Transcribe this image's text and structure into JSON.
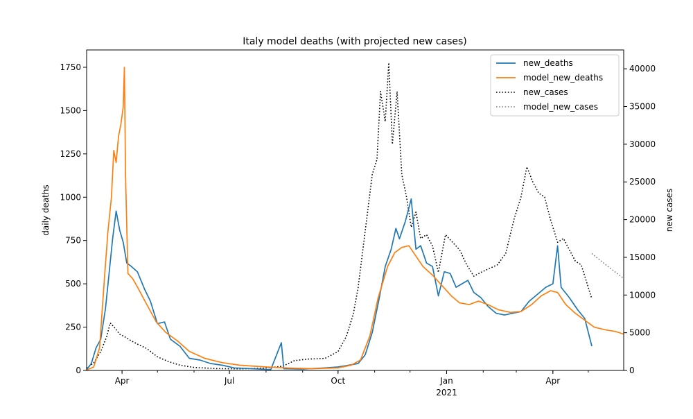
{
  "chart_data": {
    "type": "line",
    "title": "Italy model deaths (with projected new cases)",
    "ylabel_left": "daily deaths",
    "ylabel_right": "new cases",
    "x_ticks": [
      {
        "date": "2020-04-01",
        "label": "Apr"
      },
      {
        "date": "2020-07-01",
        "label": "Jul"
      },
      {
        "date": "2020-10-01",
        "label": "Oct"
      },
      {
        "date": "2021-01-01",
        "label": "Jan",
        "sublabel": "2021"
      },
      {
        "date": "2021-04-01",
        "label": "Apr"
      }
    ],
    "xlim": [
      "2020-03-02",
      "2021-05-31"
    ],
    "ylim_left": [
      0,
      1850
    ],
    "ylim_right": [
      0,
      42500
    ],
    "yticks_left": [
      0,
      250,
      500,
      750,
      1000,
      1250,
      1500,
      1750
    ],
    "yticks_right": [
      0,
      5000,
      10000,
      15000,
      20000,
      25000,
      30000,
      35000,
      40000
    ],
    "legend_position": "top-right",
    "series": [
      {
        "name": "new_deaths",
        "axis": "left",
        "color": "#1f77b4",
        "style": "solid",
        "points": [
          [
            "2020-03-02",
            5
          ],
          [
            "2020-03-06",
            40
          ],
          [
            "2020-03-10",
            130
          ],
          [
            "2020-03-14",
            180
          ],
          [
            "2020-03-18",
            360
          ],
          [
            "2020-03-21",
            560
          ],
          [
            "2020-03-24",
            760
          ],
          [
            "2020-03-27",
            920
          ],
          [
            "2020-03-30",
            810
          ],
          [
            "2020-04-02",
            740
          ],
          [
            "2020-04-05",
            620
          ],
          [
            "2020-04-09",
            600
          ],
          [
            "2020-04-14",
            570
          ],
          [
            "2020-04-20",
            470
          ],
          [
            "2020-04-25",
            400
          ],
          [
            "2020-05-01",
            270
          ],
          [
            "2020-05-07",
            280
          ],
          [
            "2020-05-12",
            180
          ],
          [
            "2020-05-20",
            140
          ],
          [
            "2020-05-28",
            70
          ],
          [
            "2020-06-06",
            60
          ],
          [
            "2020-06-15",
            40
          ],
          [
            "2020-06-25",
            30
          ],
          [
            "2020-07-05",
            15
          ],
          [
            "2020-07-20",
            10
          ],
          [
            "2020-08-05",
            5
          ],
          [
            "2020-08-14",
            160
          ],
          [
            "2020-08-16",
            10
          ],
          [
            "2020-09-01",
            8
          ],
          [
            "2020-09-20",
            15
          ],
          [
            "2020-10-01",
            20
          ],
          [
            "2020-10-10",
            30
          ],
          [
            "2020-10-18",
            40
          ],
          [
            "2020-10-24",
            90
          ],
          [
            "2020-10-30",
            220
          ],
          [
            "2020-11-05",
            420
          ],
          [
            "2020-11-10",
            600
          ],
          [
            "2020-11-15",
            700
          ],
          [
            "2020-11-19",
            820
          ],
          [
            "2020-11-22",
            760
          ],
          [
            "2020-11-27",
            860
          ],
          [
            "2020-12-02",
            990
          ],
          [
            "2020-12-06",
            700
          ],
          [
            "2020-12-10",
            720
          ],
          [
            "2020-12-15",
            620
          ],
          [
            "2020-12-20",
            600
          ],
          [
            "2020-12-25",
            430
          ],
          [
            "2020-12-30",
            570
          ],
          [
            "2021-01-04",
            560
          ],
          [
            "2021-01-09",
            480
          ],
          [
            "2021-01-14",
            500
          ],
          [
            "2021-01-19",
            520
          ],
          [
            "2021-01-24",
            450
          ],
          [
            "2021-01-30",
            420
          ],
          [
            "2021-02-05",
            370
          ],
          [
            "2021-02-12",
            330
          ],
          [
            "2021-02-19",
            320
          ],
          [
            "2021-02-26",
            330
          ],
          [
            "2021-03-05",
            340
          ],
          [
            "2021-03-12",
            400
          ],
          [
            "2021-03-19",
            440
          ],
          [
            "2021-03-26",
            480
          ],
          [
            "2021-04-01",
            500
          ],
          [
            "2021-04-05",
            720
          ],
          [
            "2021-04-08",
            480
          ],
          [
            "2021-04-15",
            420
          ],
          [
            "2021-04-22",
            350
          ],
          [
            "2021-04-28",
            300
          ],
          [
            "2021-05-04",
            140
          ]
        ]
      },
      {
        "name": "model_new_deaths",
        "axis": "left",
        "color": "#ff7f0e",
        "style": "solid",
        "points": [
          [
            "2020-03-02",
            2
          ],
          [
            "2020-03-08",
            20
          ],
          [
            "2020-03-13",
            130
          ],
          [
            "2020-03-17",
            520
          ],
          [
            "2020-03-20",
            800
          ],
          [
            "2020-03-23",
            1000
          ],
          [
            "2020-03-25",
            1270
          ],
          [
            "2020-03-27",
            1200
          ],
          [
            "2020-03-29",
            1350
          ],
          [
            "2020-03-31",
            1420
          ],
          [
            "2020-04-02",
            1520
          ],
          [
            "2020-04-03",
            1750
          ],
          [
            "2020-04-04",
            1120
          ],
          [
            "2020-04-06",
            560
          ],
          [
            "2020-04-10",
            530
          ],
          [
            "2020-04-15",
            470
          ],
          [
            "2020-04-22",
            380
          ],
          [
            "2020-04-30",
            280
          ],
          [
            "2020-05-08",
            220
          ],
          [
            "2020-05-18",
            170
          ],
          [
            "2020-05-28",
            110
          ],
          [
            "2020-06-10",
            70
          ],
          [
            "2020-06-25",
            45
          ],
          [
            "2020-07-10",
            30
          ],
          [
            "2020-08-01",
            20
          ],
          [
            "2020-08-20",
            14
          ],
          [
            "2020-09-10",
            10
          ],
          [
            "2020-10-01",
            15
          ],
          [
            "2020-10-12",
            30
          ],
          [
            "2020-10-20",
            60
          ],
          [
            "2020-10-28",
            200
          ],
          [
            "2020-11-04",
            420
          ],
          [
            "2020-11-12",
            600
          ],
          [
            "2020-11-18",
            680
          ],
          [
            "2020-11-24",
            710
          ],
          [
            "2020-11-30",
            720
          ],
          [
            "2020-12-06",
            660
          ],
          [
            "2020-12-12",
            600
          ],
          [
            "2020-12-20",
            550
          ],
          [
            "2020-12-28",
            490
          ],
          [
            "2021-01-05",
            430
          ],
          [
            "2021-01-12",
            390
          ],
          [
            "2021-01-20",
            380
          ],
          [
            "2021-01-28",
            400
          ],
          [
            "2021-02-05",
            380
          ],
          [
            "2021-02-14",
            350
          ],
          [
            "2021-02-24",
            335
          ],
          [
            "2021-03-05",
            340
          ],
          [
            "2021-03-14",
            380
          ],
          [
            "2021-03-22",
            430
          ],
          [
            "2021-03-30",
            460
          ],
          [
            "2021-04-05",
            450
          ],
          [
            "2021-04-12",
            380
          ],
          [
            "2021-04-20",
            330
          ],
          [
            "2021-04-28",
            290
          ],
          [
            "2021-05-06",
            250
          ],
          [
            "2021-05-15",
            235
          ],
          [
            "2021-05-24",
            225
          ],
          [
            "2021-05-31",
            210
          ]
        ]
      },
      {
        "name": "new_cases",
        "axis": "right",
        "color": "#000000",
        "style": "dotted",
        "points": [
          [
            "2020-03-02",
            300
          ],
          [
            "2020-03-08",
            1000
          ],
          [
            "2020-03-14",
            2500
          ],
          [
            "2020-03-19",
            4500
          ],
          [
            "2020-03-22",
            6300
          ],
          [
            "2020-03-26",
            5600
          ],
          [
            "2020-03-30",
            4800
          ],
          [
            "2020-04-03",
            4500
          ],
          [
            "2020-04-08",
            4000
          ],
          [
            "2020-04-14",
            3500
          ],
          [
            "2020-04-22",
            2900
          ],
          [
            "2020-05-01",
            1800
          ],
          [
            "2020-05-10",
            1200
          ],
          [
            "2020-05-20",
            700
          ],
          [
            "2020-06-01",
            400
          ],
          [
            "2020-06-20",
            250
          ],
          [
            "2020-07-10",
            200
          ],
          [
            "2020-07-30",
            300
          ],
          [
            "2020-08-15",
            550
          ],
          [
            "2020-08-25",
            1300
          ],
          [
            "2020-09-05",
            1500
          ],
          [
            "2020-09-20",
            1600
          ],
          [
            "2020-10-01",
            2500
          ],
          [
            "2020-10-08",
            4500
          ],
          [
            "2020-10-14",
            7500
          ],
          [
            "2020-10-18",
            11000
          ],
          [
            "2020-10-22",
            16000
          ],
          [
            "2020-10-26",
            21000
          ],
          [
            "2020-10-30",
            26000
          ],
          [
            "2020-11-03",
            28000
          ],
          [
            "2020-11-06",
            37000
          ],
          [
            "2020-11-10",
            33000
          ],
          [
            "2020-11-13",
            40800
          ],
          [
            "2020-11-16",
            30000
          ],
          [
            "2020-11-20",
            37000
          ],
          [
            "2020-11-24",
            26000
          ],
          [
            "2020-11-28",
            23000
          ],
          [
            "2020-12-02",
            19000
          ],
          [
            "2020-12-06",
            21000
          ],
          [
            "2020-12-10",
            17500
          ],
          [
            "2020-12-15",
            18000
          ],
          [
            "2020-12-20",
            16500
          ],
          [
            "2020-12-25",
            13000
          ],
          [
            "2020-12-31",
            18000
          ],
          [
            "2021-01-06",
            17000
          ],
          [
            "2021-01-12",
            16000
          ],
          [
            "2021-01-18",
            14000
          ],
          [
            "2021-01-24",
            12500
          ],
          [
            "2021-01-30",
            13000
          ],
          [
            "2021-02-06",
            13500
          ],
          [
            "2021-02-13",
            14000
          ],
          [
            "2021-02-20",
            15500
          ],
          [
            "2021-02-27",
            20000
          ],
          [
            "2021-03-05",
            23000
          ],
          [
            "2021-03-10",
            27000
          ],
          [
            "2021-03-15",
            25000
          ],
          [
            "2021-03-20",
            23500
          ],
          [
            "2021-03-25",
            23000
          ],
          [
            "2021-03-30",
            20000
          ],
          [
            "2021-04-05",
            17000
          ],
          [
            "2021-04-10",
            17500
          ],
          [
            "2021-04-15",
            16000
          ],
          [
            "2021-04-20",
            14500
          ],
          [
            "2021-04-25",
            14000
          ],
          [
            "2021-05-04",
            9500
          ]
        ]
      },
      {
        "name": "model_new_cases",
        "axis": "right",
        "color": "#808080",
        "style": "dotted",
        "points": [
          [
            "2021-05-04",
            15500
          ],
          [
            "2021-05-12",
            14500
          ],
          [
            "2021-05-20",
            13500
          ],
          [
            "2021-05-31",
            12200
          ]
        ]
      }
    ]
  }
}
